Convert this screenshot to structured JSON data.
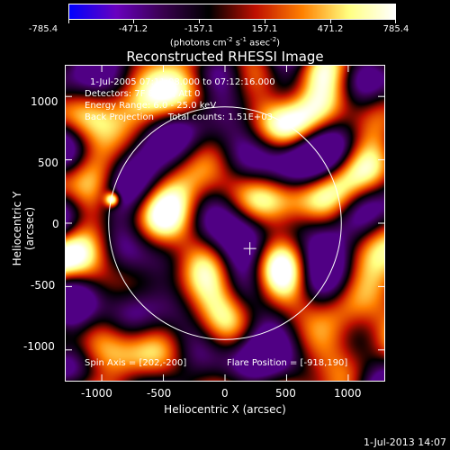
{
  "colorbar": {
    "labels": [
      "-785.4",
      "-471.2",
      "-157.1",
      "157.1",
      "471.2",
      "785.4"
    ],
    "units_prefix": "(photons cm",
    "units_exp1": "-2",
    "units_mid": " s",
    "units_exp2": "-1",
    "units_mid2": " asec",
    "units_exp3": "-2",
    "units_suffix": ")",
    "colors": [
      "#0000ff",
      "#6a00c0",
      "#3a0050",
      "#000000",
      "#c01000",
      "#ff8000",
      "#ffff80",
      "#ffffff"
    ]
  },
  "title": "Reconstructed RHESSI Image",
  "info": {
    "line1": "1-Jul-2005 07:11:08.000 to 07:12:16.000",
    "line2": "Detectors: 7F 8F 9F, Att 0",
    "line3": "Energy Range: 6.0 - 25.0 keV",
    "line4": "Back Projection     Total counts: 1.51E+03",
    "spin_axis": "Spin Axis = [202,-200]",
    "flare_position": "Flare Position = [-918,190]"
  },
  "axes": {
    "xlabel": "Heliocentric X (arcsec)",
    "ylabel": "Heliocentric Y (arcsec)",
    "xticks": [
      "-1000",
      "-500",
      "0",
      "500",
      "1000"
    ],
    "yticks": [
      "1000",
      "500",
      "0",
      "-500",
      "-1000"
    ],
    "xrange": [
      -1300,
      1300
    ],
    "yrange": [
      -1250,
      1250
    ]
  },
  "map": {
    "spin_axis": [
      202,
      -200
    ],
    "flare_position": [
      -918,
      190
    ],
    "solar_disk_radius_arcsec": 944,
    "value_range": [
      -785.4,
      785.4
    ]
  },
  "footer": {
    "date": "1-Jul-2013 14:07"
  }
}
